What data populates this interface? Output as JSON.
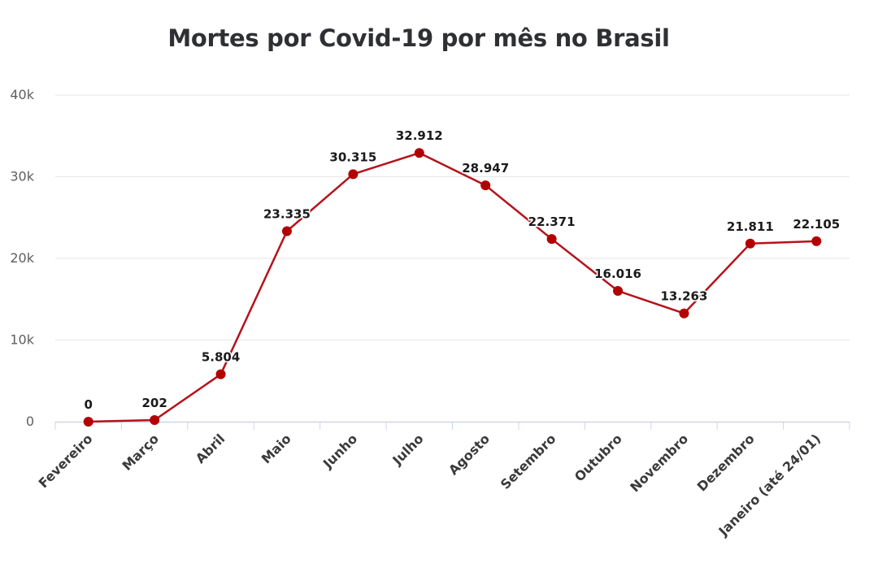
{
  "chart_data": {
    "type": "line",
    "title": "Mortes por Covid-19 por mês no Brasil",
    "xlabel": "",
    "ylabel": "",
    "categories": [
      "Fevereiro",
      "Março",
      "Abril",
      "Maio",
      "Junho",
      "Julho",
      "Agosto",
      "Setembro",
      "Outubro",
      "Novembro",
      "Dezembro",
      "Janeiro (até 24/01)"
    ],
    "series": [
      {
        "values": [
          0,
          202,
          5804,
          23335,
          30315,
          32912,
          28947,
          22371,
          16016,
          13263,
          21811,
          22105
        ],
        "data_labels": [
          "0",
          "202",
          "5.804",
          "23.335",
          "30.315",
          "32.912",
          "28.947",
          "22.371",
          "16.016",
          "13.263",
          "21.811",
          "22.105"
        ]
      }
    ],
    "ylim": [
      0,
      40000
    ],
    "yticks": [
      0,
      10000,
      20000,
      30000,
      40000
    ],
    "ytick_labels": [
      "0",
      "10k",
      "20k",
      "30k",
      "40k"
    ],
    "grid": true,
    "legend": "none",
    "colors": {
      "line": "#b5121b",
      "marker": "#b30000",
      "grid": "#e6e6e6",
      "axis": "#ccd6eb"
    }
  }
}
